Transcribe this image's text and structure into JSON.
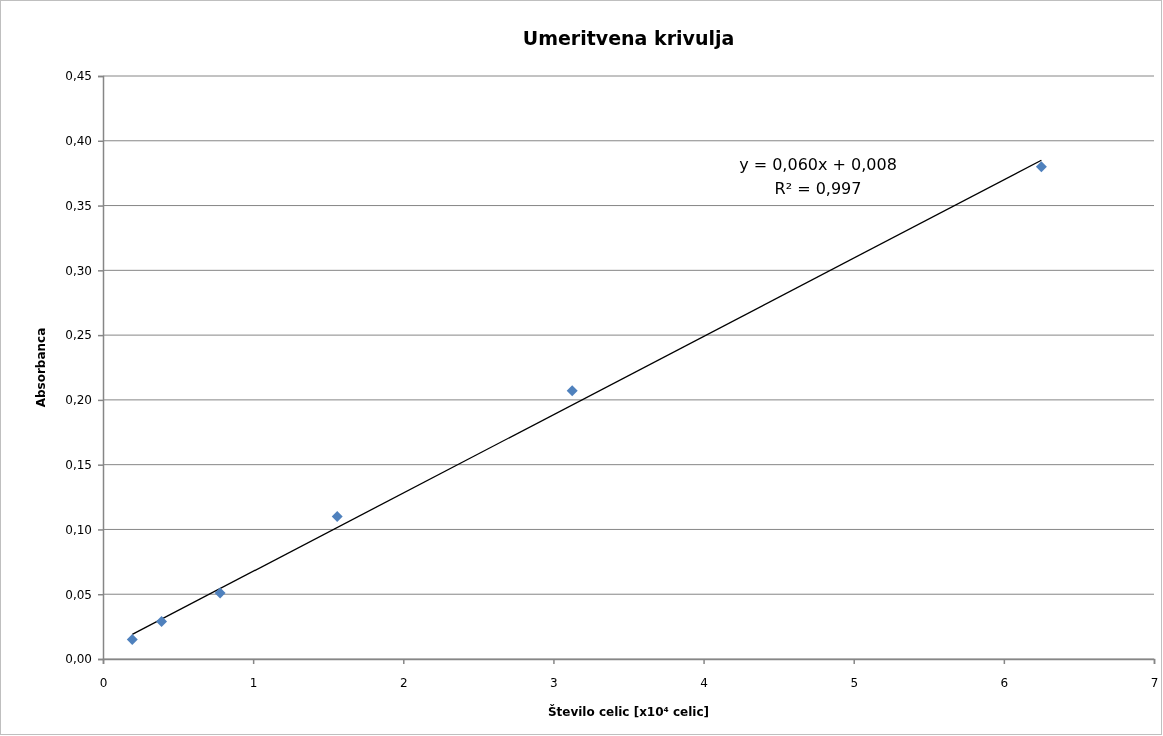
{
  "chart_data": {
    "type": "scatter",
    "title": "Umeritvena krivulja",
    "xlabel": "Število celic [x10⁴ celic]",
    "ylabel": "Absorbanca",
    "annotations": [
      "y = 0,060x + 0,008",
      "R² = 0,997"
    ],
    "xlim": [
      0,
      7
    ],
    "xticks": [
      0,
      1,
      2,
      3,
      4,
      5,
      6,
      7
    ],
    "ylim": [
      0,
      0.45
    ],
    "yticks": [
      {
        "value": 0,
        "label": "0,00"
      },
      {
        "value": 0.05,
        "label": "0,05"
      },
      {
        "value": 0.1,
        "label": "0,10"
      },
      {
        "value": 0.15,
        "label": "0,15"
      },
      {
        "value": 0.2,
        "label": "0,20"
      },
      {
        "value": 0.25,
        "label": "0,25"
      },
      {
        "value": 0.3,
        "label": "0,30"
      },
      {
        "value": 0.35,
        "label": "0,35"
      },
      {
        "value": 0.4,
        "label": "0,40"
      },
      {
        "value": 0.45,
        "label": "0,45"
      }
    ],
    "grid": "y",
    "marker": "diamond",
    "series": [
      {
        "color": "#4f81bd",
        "x": [
          0.195,
          0.39,
          0.78,
          1.56,
          3.125,
          6.25
        ],
        "values": [
          0.015,
          0.029,
          0.051,
          0.11,
          0.207,
          0.38
        ]
      },
      {
        "type": "line",
        "color": "#000000",
        "marker": "none",
        "line_style": "solid",
        "x": [
          0.195,
          6.25
        ],
        "values": [
          0.019,
          0.385
        ]
      }
    ]
  }
}
